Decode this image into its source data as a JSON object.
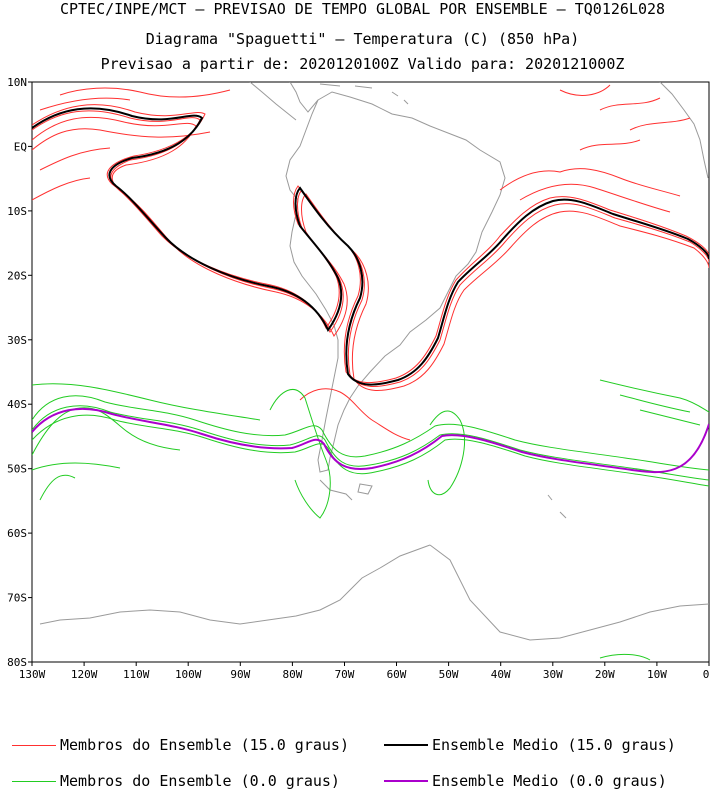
{
  "header": {
    "line1": "CPTEC/INPE/MCT – PREVISAO DE TEMPO GLOBAL POR ENSEMBLE – TQ0126L028",
    "line2": "Diagrama \"Spaguetti\" – Temperatura (C) (850 hPa)",
    "line3": "Previsao a partir de: 2020120100Z  Valido para: 2020121000Z"
  },
  "axes": {
    "lat_labels": [
      "10N",
      "EQ",
      "10S",
      "20S",
      "30S",
      "40S",
      "50S",
      "60S",
      "70S",
      "80S"
    ],
    "lon_labels": [
      "130W",
      "120W",
      "110W",
      "100W",
      "90W",
      "80W",
      "70W",
      "60W",
      "50W",
      "40W",
      "30W",
      "20W",
      "10W",
      "0"
    ]
  },
  "legend": [
    {
      "label": "Membros do Ensemble (15.0 graus)",
      "color": "#ff3030",
      "icon": "thin-line-icon"
    },
    {
      "label": "Ensemble Medio (15.0 graus)",
      "color": "#000000",
      "icon": "line-icon"
    },
    {
      "label": "Membros do Ensemble (0.0 graus)",
      "color": "#22cc22",
      "icon": "thin-line-icon"
    },
    {
      "label": "Ensemble Medio (0.0 graus)",
      "color": "#aa00cc",
      "icon": "line-icon"
    }
  ],
  "colors": {
    "land": "#9a9a9a",
    "members_15": "#ff3030",
    "mean_15": "#000000",
    "members_0": "#22cc22",
    "mean_0": "#aa00cc"
  }
}
